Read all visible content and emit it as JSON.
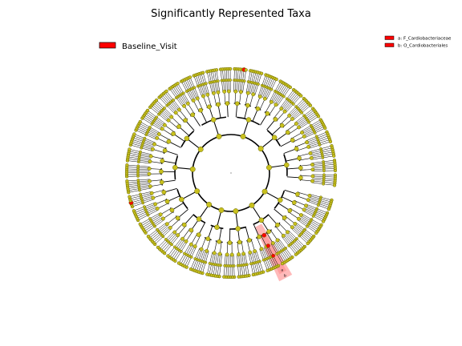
{
  "chart_data": {
    "type": "cladogram",
    "title": "Significantly Represented Taxa",
    "center": "root",
    "ring_radii": [
      48,
      70,
      87,
      102,
      116,
      130
    ],
    "leaf_counts_by_sector": [
      22,
      20,
      18,
      14,
      16,
      24,
      26,
      22,
      28,
      26,
      22,
      24
    ],
    "node_color": "#c8c01e",
    "node_stroke": "#666600",
    "group_legend": [
      {
        "label": "Baseline_Visit",
        "color": "#ff0000"
      }
    ],
    "highlighted_clades": [
      {
        "letter": "a",
        "name": "F_Cardiobacteriaceae",
        "label": "a: F_Cardiobacteriaceae",
        "color": "#ff0000"
      },
      {
        "letter": "b",
        "name": "O_Cardiobacteriales",
        "label": "b: O_Cardiobacteriales",
        "color": "#ff0000"
      }
    ],
    "highlight_color": "#ff0000",
    "shade_color": "#ff8080",
    "isolated_red_leaves": [
      {
        "sector": 5,
        "leaf": 20
      },
      {
        "sector": 9,
        "leaf": 5
      }
    ],
    "highlight_angle_deg": 62,
    "grid": false
  }
}
